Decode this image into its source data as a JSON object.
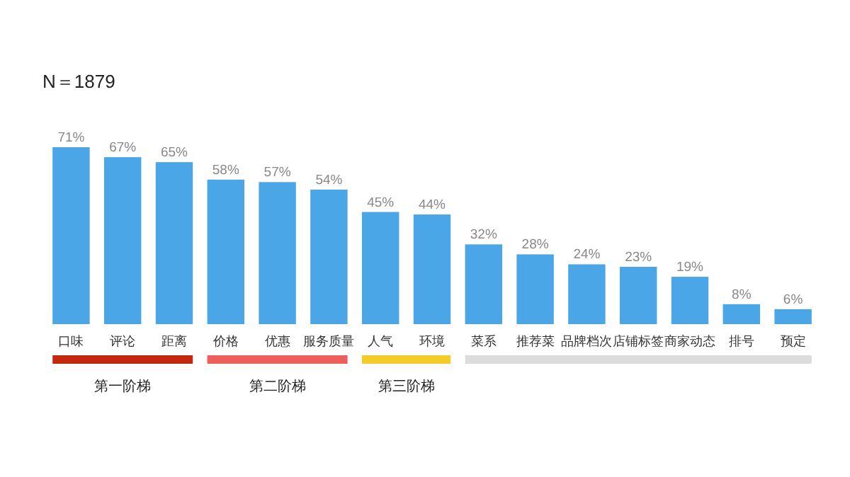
{
  "chart_data": {
    "type": "bar",
    "title": "N＝1879",
    "categories": [
      "口味",
      "评论",
      "距离",
      "价格",
      "优惠",
      "服务质量",
      "人气",
      "环境",
      "菜系",
      "推荐菜",
      "品牌档次",
      "店铺标签",
      "商家动态",
      "排号",
      "预定"
    ],
    "values": [
      71,
      67,
      65,
      58,
      57,
      54,
      45,
      44,
      32,
      28,
      24,
      23,
      19,
      8,
      6
    ],
    "value_labels": [
      "71%",
      "67%",
      "65%",
      "58%",
      "57%",
      "54%",
      "45%",
      "44%",
      "32%",
      "28%",
      "24%",
      "23%",
      "19%",
      "8%",
      "6%"
    ],
    "color": "#4aa6e6",
    "annotations": [
      "第一阶梯",
      "第二阶梯",
      "第三阶梯"
    ]
  }
}
